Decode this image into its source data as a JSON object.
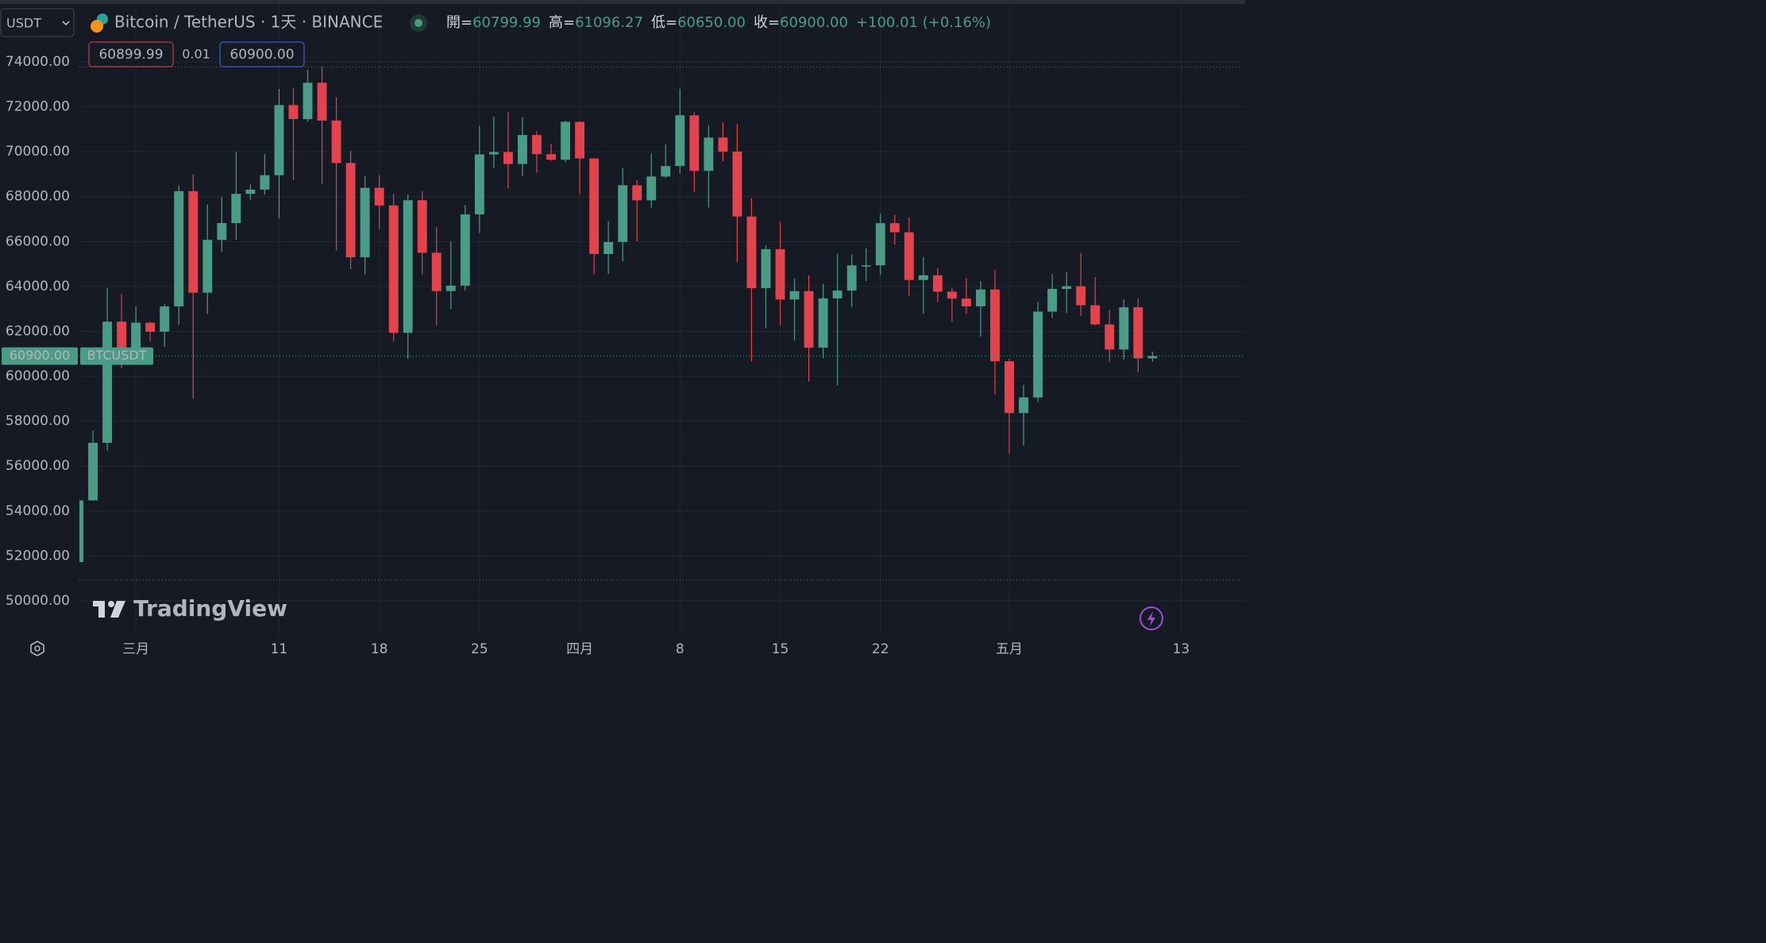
{
  "chart_data": {
    "type": "candlestick",
    "symbol_select": "USDT",
    "title": "Bitcoin / TetherUS · 1天 · BINANCE",
    "legend": [
      {
        "label": "開=",
        "value": "60799.99"
      },
      {
        "label": "高=",
        "value": "61096.27"
      },
      {
        "label": "低=",
        "value": "60650.00"
      },
      {
        "label": "收=",
        "value": "60900.00"
      }
    ],
    "change": "+100.01 (+0.16%)",
    "bid": "60899.99",
    "spread": "0.01",
    "ask": "60900.00",
    "last_price": {
      "value": 60900,
      "label": "60900.00",
      "symbol": "BTCUSDT"
    },
    "watermark": "TradingView",
    "up_color": "#4a9c86",
    "down_color": "#e3434d",
    "categories": [
      null,
      null,
      null,
      null,
      null,
      null,
      null,
      null,
      null,
      null,
      null,
      null,
      null,
      null,
      null,
      null,
      null,
      null,
      null,
      null,
      null,
      null,
      null,
      null,
      null,
      null,
      null,
      null,
      null,
      null,
      null,
      null,
      null,
      null,
      null,
      null,
      null,
      null,
      null,
      null,
      null,
      null,
      null,
      null,
      null,
      null,
      null,
      null,
      null,
      null,
      null,
      null,
      null,
      null,
      null,
      null,
      null,
      null,
      null,
      null,
      null,
      null,
      null,
      null,
      null,
      null,
      null,
      null,
      null,
      null,
      null,
      null,
      null,
      null,
      null,
      null
    ],
    "open": [
      51730,
      54476,
      57037,
      62432,
      61130,
      62387,
      61987,
      63113,
      68245,
      63724,
      66074,
      66823,
      68124,
      68313,
      68955,
      72078,
      71452,
      73072,
      71388,
      69499,
      65300,
      68393,
      67609,
      61937,
      67840,
      65501,
      63796,
      64037,
      67211,
      69880,
      69988,
      69455,
      70744,
      69892,
      69645,
      71333,
      69702,
      65446,
      65980,
      68508,
      67837,
      68896,
      69362,
      71620,
      69146,
      70631,
      70006,
      67116,
      63924,
      65661,
      63419,
      63793,
      61277,
      63470,
      63818,
      64940,
      64941,
      66819,
      66414,
      64289,
      64498,
      63770,
      63461,
      63118,
      63866,
      60672,
      58364,
      59060,
      62882,
      63892,
      64012,
      63165,
      62312,
      61193,
      63074,
      60799.99
    ],
    "high": [
      54938,
      57588,
      63933,
      63676,
      63114,
      62433,
      63231,
      68499,
      69000,
      67641,
      67985,
      69990,
      68541,
      69887,
      72800,
      72825,
      73650,
      73777,
      72419,
      70043,
      68904,
      68956,
      68124,
      68100,
      68240,
      66649,
      65999,
      67622,
      71150,
      71561,
      71769,
      71552,
      70913,
      70355,
      71377,
      71342,
      69708,
      66914,
      69291,
      68725,
      69918,
      70326,
      72797,
      71758,
      71172,
      71305,
      71227,
      67931,
      65840,
      66867,
      64365,
      64499,
      64117,
      65450,
      65419,
      65695,
      67233,
      67199,
      67075,
      65297,
      64820,
      63923,
      64370,
      64228,
      64734,
      60780,
      59625,
      63320,
      64545,
      64646,
      65500,
      64422,
      62962,
      63420,
      63469,
      61096.27
    ],
    "low": [
      50931,
      54450,
      56687,
      60364,
      60777,
      61561,
      61321,
      62300,
      59005,
      62779,
      65551,
      66082,
      67861,
      68094,
      67024,
      68728,
      71333,
      68555,
      65600,
      64781,
      64533,
      66566,
      61555,
      60775,
      64529,
      62260,
      63000,
      63821,
      66385,
      69280,
      68359,
      68903,
      69076,
      69601,
      69535,
      68110,
      64533,
      64559,
      65113,
      66011,
      67490,
      68824,
      69043,
      68210,
      67518,
      69567,
      65086,
      60660,
      62134,
      62274,
      61600,
      59768,
      60803,
      59600,
      63090,
      64237,
      64500,
      65864,
      63589,
      62794,
      63297,
      62424,
      62781,
      61765,
      59191,
      56552,
      56911,
      58848,
      62603,
      62822,
      62700,
      62261,
      60632,
      60750,
      60187,
      60650
    ],
    "close": [
      54476,
      57037,
      62432,
      61130,
      62387,
      61987,
      63113,
      68245,
      63724,
      66074,
      66823,
      68124,
      68313,
      68955,
      72078,
      71452,
      73072,
      71388,
      69499,
      65300,
      68393,
      67609,
      61937,
      67840,
      65501,
      63796,
      64037,
      67211,
      69880,
      69988,
      69455,
      70744,
      69892,
      69645,
      71333,
      69702,
      65446,
      65980,
      68508,
      67837,
      68896,
      69362,
      71620,
      69146,
      70631,
      70006,
      67116,
      63924,
      65661,
      63419,
      63793,
      61277,
      63470,
      63818,
      64940,
      64941,
      66819,
      66414,
      64289,
      64498,
      63770,
      63461,
      63118,
      63866,
      60672,
      58364,
      59060,
      62882,
      63892,
      64012,
      63165,
      62312,
      61193,
      63074,
      60799.99,
      60900
    ],
    "xlim": [
      0.055,
      81.47
    ],
    "xticks": [
      {
        "value": 4,
        "label": "三月"
      },
      {
        "value": 14,
        "label": "11"
      },
      {
        "value": 21,
        "label": "18"
      },
      {
        "value": 28,
        "label": "25"
      },
      {
        "value": 35,
        "label": "四月"
      },
      {
        "value": 42,
        "label": "8"
      },
      {
        "value": 49,
        "label": "15"
      },
      {
        "value": 56,
        "label": "22"
      },
      {
        "value": 65,
        "label": "五月"
      },
      {
        "value": 77,
        "label": "13"
      }
    ],
    "ylim": [
      48480,
      76580
    ],
    "yticks": [
      {
        "value": 50000,
        "label": "50000.00"
      },
      {
        "value": 52000,
        "label": "52000.00"
      },
      {
        "value": 54000,
        "label": "54000.00"
      },
      {
        "value": 56000,
        "label": "56000.00"
      },
      {
        "value": 58000,
        "label": "58000.00"
      },
      {
        "value": 60000,
        "label": "60000.00"
      },
      {
        "value": 62000,
        "label": "62000.00"
      },
      {
        "value": 64000,
        "label": "64000.00"
      },
      {
        "value": 66000,
        "label": "66000.00"
      },
      {
        "value": 68000,
        "label": "68000.00"
      },
      {
        "value": 70000,
        "label": "70000.00"
      },
      {
        "value": 72000,
        "label": "72000.00"
      },
      {
        "value": 74000,
        "label": "74000.00"
      }
    ],
    "grid": true
  }
}
